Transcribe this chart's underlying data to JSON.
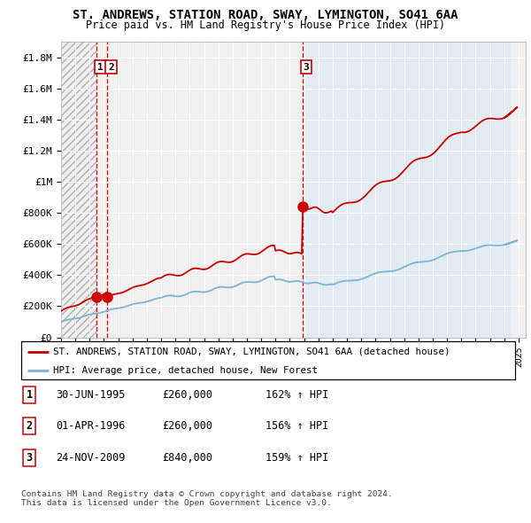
{
  "title": "ST. ANDREWS, STATION ROAD, SWAY, LYMINGTON, SO41 6AA",
  "subtitle": "Price paid vs. HM Land Registry's House Price Index (HPI)",
  "legend_line1": "ST. ANDREWS, STATION ROAD, SWAY, LYMINGTON, SO41 6AA (detached house)",
  "legend_line2": "HPI: Average price, detached house, New Forest",
  "table_rows": [
    {
      "num": "1",
      "date": "30-JUN-1995",
      "price": "£260,000",
      "hpi": "162% ↑ HPI"
    },
    {
      "num": "2",
      "date": "01-APR-1996",
      "price": "£260,000",
      "hpi": "156% ↑ HPI"
    },
    {
      "num": "3",
      "date": "24-NOV-2009",
      "price": "£840,000",
      "hpi": "159% ↑ HPI"
    }
  ],
  "footnote1": "Contains HM Land Registry data © Crown copyright and database right 2024.",
  "footnote2": "This data is licensed under the Open Government Licence v3.0.",
  "sale_dates": [
    1995.496,
    1996.247,
    2009.899
  ],
  "sale_prices": [
    260000,
    260000,
    840000
  ],
  "sale_labels": [
    "1",
    "2",
    "3"
  ],
  "vline_dates": [
    1995.496,
    1996.247,
    2009.899
  ],
  "hpi_color": "#7bb4d8",
  "hpi_fill_color": "#d6e8f5",
  "sale_color": "#cc0000",
  "vline_color": "#cc0000",
  "hatch_color": "#c8c8c8",
  "ylim": [
    0,
    1900000
  ],
  "xlim_start": 1993.0,
  "xlim_end": 2025.5,
  "yticks": [
    0,
    200000,
    400000,
    600000,
    800000,
    1000000,
    1200000,
    1400000,
    1600000,
    1800000
  ],
  "ytick_labels": [
    "£0",
    "£200K",
    "£400K",
    "£600K",
    "£800K",
    "£1M",
    "£1.2M",
    "£1.4M",
    "£1.6M",
    "£1.8M"
  ],
  "xticks": [
    1993,
    1994,
    1995,
    1996,
    1997,
    1998,
    1999,
    2000,
    2001,
    2002,
    2003,
    2004,
    2005,
    2006,
    2007,
    2008,
    2009,
    2010,
    2011,
    2012,
    2013,
    2014,
    2015,
    2016,
    2017,
    2018,
    2019,
    2020,
    2021,
    2022,
    2023,
    2024,
    2025
  ],
  "bg_color": "#f0f0f0",
  "grid_color": "#ffffff",
  "right_bg_color": "#ddeeff"
}
